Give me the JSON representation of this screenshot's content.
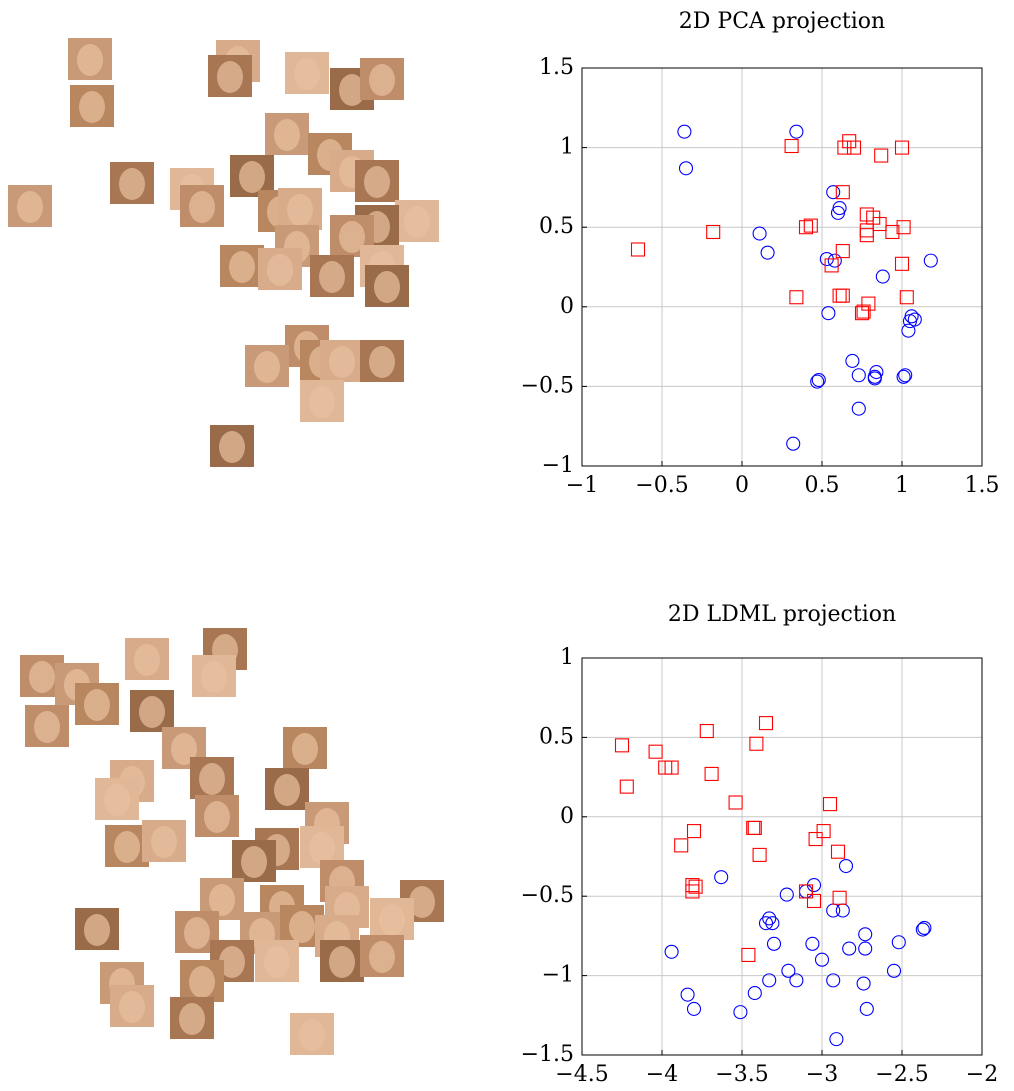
{
  "chart_data": [
    {
      "type": "scatter",
      "title": "2D PCA projection",
      "xlim": [
        -1,
        1.5
      ],
      "ylim": [
        -1,
        1.5
      ],
      "grid": true,
      "xticks": [
        {
          "value": -1,
          "label": "−1"
        },
        {
          "value": -0.5,
          "label": "−0.5"
        },
        0,
        0.5,
        1,
        1.5
      ],
      "yticks": [
        {
          "value": -1,
          "label": "−1"
        },
        {
          "value": -0.5,
          "label": "−0.5"
        },
        0,
        0.5,
        1,
        1.5
      ],
      "series": [
        {
          "color": "#0000ff",
          "marker": "circle",
          "x": [
            -0.36,
            -0.35,
            0.34,
            0.57,
            0.61,
            0.6,
            0.11,
            0.16,
            0.53,
            0.58,
            1.18,
            0.88,
            0.54,
            1.06,
            1.08,
            1.05,
            1.04,
            0.69,
            0.73,
            0.84,
            0.83,
            0.83,
            0.48,
            0.47,
            1.02,
            1.01,
            0.73,
            0.32
          ],
          "values": [
            1.1,
            0.87,
            1.1,
            0.72,
            0.62,
            0.59,
            0.46,
            0.34,
            0.3,
            0.29,
            0.29,
            0.19,
            -0.04,
            -0.06,
            -0.08,
            -0.09,
            -0.15,
            -0.34,
            -0.43,
            -0.41,
            -0.44,
            -0.45,
            -0.46,
            -0.47,
            -0.43,
            -0.44,
            -0.64,
            -0.86
          ]
        },
        {
          "color": "#ff0000",
          "marker": "square",
          "x": [
            0.67,
            0.64,
            0.7,
            0.31,
            1.0,
            0.87,
            0.63,
            0.43,
            0.4,
            0.82,
            0.78,
            0.86,
            1.01,
            0.78,
            0.78,
            0.94,
            -0.18,
            -0.65,
            0.63,
            0.56,
            1.0,
            0.61,
            0.63,
            0.34,
            1.03,
            0.79,
            0.76,
            0.75
          ],
          "values": [
            1.04,
            1.0,
            1.0,
            1.01,
            1.0,
            0.95,
            0.72,
            0.51,
            0.5,
            0.56,
            0.58,
            0.52,
            0.5,
            0.48,
            0.45,
            0.47,
            0.47,
            0.36,
            0.35,
            0.26,
            0.27,
            0.07,
            0.07,
            0.06,
            0.06,
            0.02,
            -0.03,
            -0.04
          ]
        }
      ]
    },
    {
      "type": "scatter",
      "title": "2D LDML projection",
      "xlim": [
        -4.5,
        -2
      ],
      "ylim": [
        -1.5,
        1
      ],
      "grid": true,
      "xticks": [
        {
          "value": -4.5,
          "label": "−4.5"
        },
        {
          "value": -4,
          "label": "−4"
        },
        {
          "value": -3.5,
          "label": "−3.5"
        },
        {
          "value": -3,
          "label": "−3"
        },
        {
          "value": -2.5,
          "label": "−2.5"
        },
        {
          "value": -2,
          "label": "−2"
        }
      ],
      "yticks": [
        {
          "value": -1.5,
          "label": "−1.5"
        },
        {
          "value": -1,
          "label": "−1"
        },
        {
          "value": -0.5,
          "label": "−0.5"
        },
        0,
        0.5,
        1
      ],
      "series": [
        {
          "color": "#0000ff",
          "marker": "circle",
          "x": [
            -2.85,
            -3.63,
            -3.05,
            -3.1,
            -3.22,
            -2.93,
            -2.87,
            -3.33,
            -3.35,
            -3.31,
            -2.73,
            -2.37,
            -2.36,
            -2.52,
            -3.3,
            -3.06,
            -2.83,
            -2.73,
            -3.94,
            -3.0,
            -3.21,
            -2.55,
            -3.16,
            -2.93,
            -3.33,
            -2.74,
            -3.84,
            -3.42,
            -3.8,
            -2.72,
            -3.51,
            -2.91
          ],
          "values": [
            -0.31,
            -0.38,
            -0.43,
            -0.47,
            -0.49,
            -0.59,
            -0.59,
            -0.64,
            -0.67,
            -0.67,
            -0.74,
            -0.71,
            -0.7,
            -0.79,
            -0.8,
            -0.8,
            -0.83,
            -0.83,
            -0.85,
            -0.9,
            -0.97,
            -0.97,
            -1.03,
            -1.03,
            -1.03,
            -1.05,
            -1.12,
            -1.11,
            -1.21,
            -1.21,
            -1.23,
            -1.4
          ]
        },
        {
          "color": "#ff0000",
          "marker": "square",
          "x": [
            -3.35,
            -3.72,
            -3.41,
            -4.25,
            -4.04,
            -3.98,
            -3.94,
            -3.69,
            -4.22,
            -3.54,
            -2.95,
            -2.99,
            -3.43,
            -3.42,
            -3.8,
            -3.04,
            -3.88,
            -2.9,
            -3.39,
            -3.81,
            -3.79,
            -3.81,
            -3.1,
            -2.89,
            -3.05,
            -3.46
          ],
          "values": [
            0.59,
            0.54,
            0.46,
            0.45,
            0.41,
            0.31,
            0.31,
            0.27,
            0.19,
            0.09,
            0.08,
            -0.09,
            -0.07,
            -0.07,
            -0.09,
            -0.14,
            -0.18,
            -0.22,
            -0.24,
            -0.43,
            -0.44,
            -0.47,
            -0.47,
            -0.51,
            -0.53,
            -0.87
          ]
        }
      ]
    }
  ]
}
